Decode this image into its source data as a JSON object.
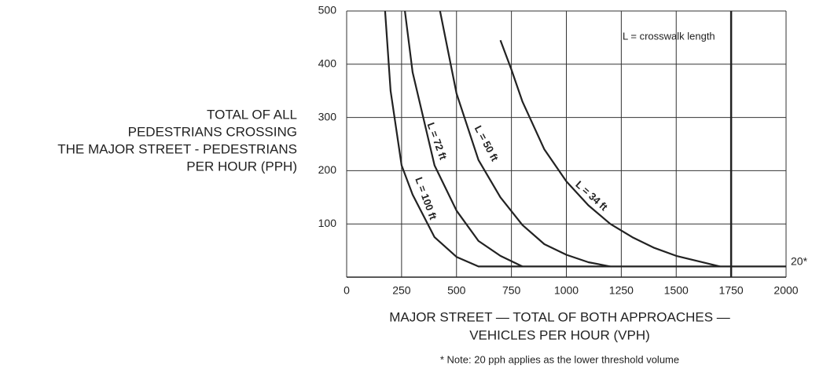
{
  "chart_data": {
    "type": "line",
    "x_label": [
      "MAJOR STREET — TOTAL OF BOTH APPROACHES —",
      "VEHICLES PER HOUR (VPH)"
    ],
    "y_label": [
      "TOTAL OF ALL",
      "PEDESTRIANS CROSSING",
      "THE MAJOR STREET - PEDESTRIANS",
      "PER HOUR (PPH)"
    ],
    "annotation": "L = crosswalk length",
    "note": "* Note: 20 pph applies as the lower threshold volume",
    "threshold_label": "20*",
    "xlim": [
      0,
      2000
    ],
    "xticks": [
      0,
      250,
      500,
      750,
      1000,
      1250,
      1500,
      1750,
      2000
    ],
    "ylim": [
      0,
      500
    ],
    "yticks": [
      100,
      200,
      300,
      400,
      500
    ],
    "grid": true,
    "reference_x": 1750,
    "series": [
      {
        "name": "L = 100 ft",
        "color": "#222222",
        "x": [
          175,
          200,
          250,
          300,
          400,
          500,
          600,
          2000
        ],
        "values": [
          500,
          350,
          210,
          155,
          75,
          38,
          20,
          20
        ]
      },
      {
        "name": "L = 72 ft",
        "color": "#222222",
        "x": [
          265,
          300,
          400,
          500,
          600,
          700,
          800
        ],
        "values": [
          500,
          385,
          210,
          125,
          68,
          40,
          20
        ]
      },
      {
        "name": "L = 50 ft",
        "color": "#222222",
        "x": [
          425,
          500,
          600,
          700,
          800,
          900,
          1000,
          1100,
          1200
        ],
        "values": [
          500,
          345,
          220,
          150,
          98,
          62,
          42,
          28,
          20
        ]
      },
      {
        "name": "L = 34 ft",
        "color": "#222222",
        "x": [
          700,
          750,
          800,
          900,
          1000,
          1100,
          1200,
          1300,
          1400,
          1500,
          1700
        ],
        "values": [
          445,
          390,
          330,
          240,
          180,
          135,
          100,
          75,
          55,
          40,
          20
        ]
      }
    ]
  }
}
